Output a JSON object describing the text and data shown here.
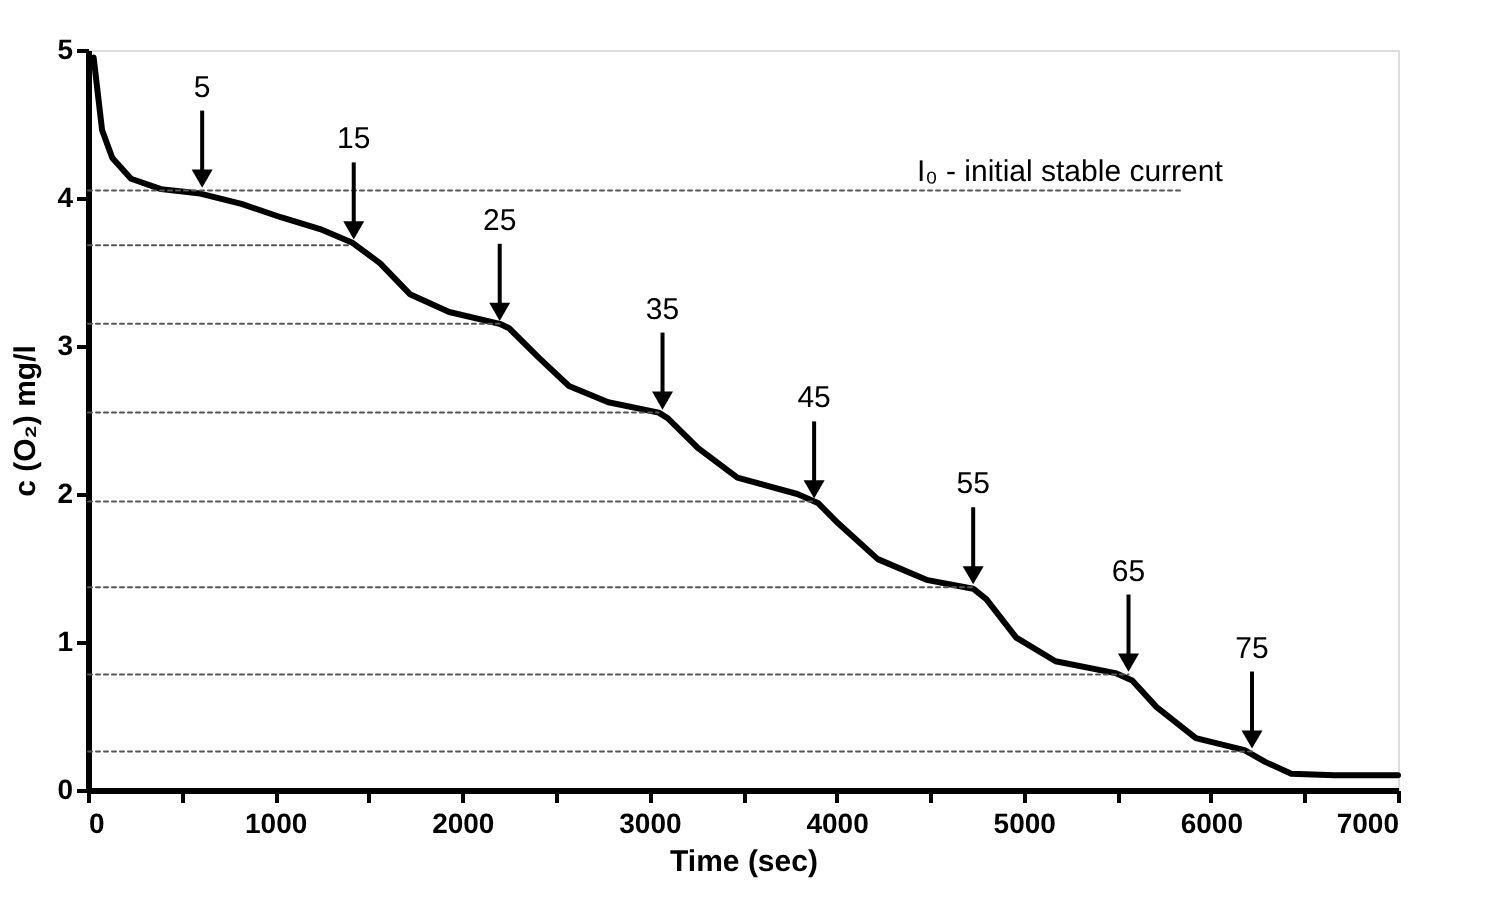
{
  "chart_data": {
    "type": "line",
    "xlabel": "Time (sec)",
    "ylabel": "c (O₂) mg/l",
    "xlim": [
      0,
      7000
    ],
    "ylim": [
      0,
      5
    ],
    "xticks": [
      0,
      {
        "value": 500,
        "label": null
      },
      1000,
      {
        "value": 1500,
        "label": null
      },
      2000,
      {
        "value": 2500,
        "label": null
      },
      3000,
      {
        "value": 3500,
        "label": null
      },
      4000,
      {
        "value": 4500,
        "label": null
      },
      5000,
      {
        "value": 5500,
        "label": null
      },
      6000,
      {
        "value": 6500,
        "label": null
      },
      7000
    ],
    "yticks": [
      0,
      1,
      2,
      3,
      4,
      5
    ],
    "grid": false,
    "legend": false,
    "marker": "none",
    "series": [
      {
        "type": "line",
        "color": "#000000",
        "line_style": "solid",
        "x": [
          30,
          75,
          130,
          230,
          390,
          600,
          820,
          1030,
          1240,
          1410,
          1560,
          1720,
          1930,
          2200,
          2250,
          2410,
          2570,
          2780,
          3050,
          3100,
          3260,
          3470,
          3790,
          3900,
          4010,
          4220,
          4480,
          4730,
          4800,
          4960,
          5170,
          5490,
          5580,
          5710,
          5920,
          6180,
          6290,
          6430,
          6660,
          7000
        ],
        "values": [
          4.95,
          4.46,
          4.27,
          4.13,
          4.06,
          4.03,
          3.96,
          3.87,
          3.79,
          3.7,
          3.56,
          3.35,
          3.23,
          3.15,
          3.12,
          2.92,
          2.73,
          2.62,
          2.55,
          2.51,
          2.31,
          2.11,
          2.0,
          1.94,
          1.8,
          1.56,
          1.42,
          1.36,
          1.29,
          1.03,
          0.87,
          0.79,
          0.74,
          0.56,
          0.35,
          0.27,
          0.19,
          0.11,
          0.1,
          0.1
        ]
      },
      {
        "type": "line",
        "name": "I₀ - initial stable current",
        "color": "#555555",
        "line_style": "dotted",
        "x": [
          0,
          5850
        ],
        "values": [
          4.05,
          4.05
        ]
      },
      {
        "type": "line",
        "color": "#555555",
        "line_style": "dotted",
        "x": [
          0,
          1410
        ],
        "values": [
          3.68,
          3.68
        ]
      },
      {
        "type": "line",
        "color": "#555555",
        "line_style": "dotted",
        "x": [
          0,
          2200
        ],
        "values": [
          3.15,
          3.15
        ]
      },
      {
        "type": "line",
        "color": "#555555",
        "line_style": "dotted",
        "x": [
          0,
          3050
        ],
        "values": [
          2.55,
          2.55
        ]
      },
      {
        "type": "line",
        "color": "#555555",
        "line_style": "dotted",
        "x": [
          0,
          3880
        ],
        "values": [
          1.95,
          1.95
        ]
      },
      {
        "type": "line",
        "color": "#555555",
        "line_style": "dotted",
        "x": [
          0,
          4730
        ],
        "values": [
          1.37,
          1.37
        ]
      },
      {
        "type": "line",
        "color": "#555555",
        "line_style": "dotted",
        "x": [
          0,
          5560
        ],
        "values": [
          0.78,
          0.78
        ]
      },
      {
        "type": "line",
        "color": "#555555",
        "line_style": "dotted",
        "x": [
          0,
          6220
        ],
        "values": [
          0.26,
          0.26
        ]
      }
    ],
    "annotations": [
      {
        "text": "5",
        "x": 610,
        "y": 4.05
      },
      {
        "text": "15",
        "x": 1420,
        "y": 3.7
      },
      {
        "text": "25",
        "x": 2200,
        "y": 3.15
      },
      {
        "text": "35",
        "x": 3070,
        "y": 2.55
      },
      {
        "text": "45",
        "x": 3880,
        "y": 1.95
      },
      {
        "text": "55",
        "x": 4730,
        "y": 1.37
      },
      {
        "text": "65",
        "x": 5560,
        "y": 0.78
      },
      {
        "text": "75",
        "x": 6220,
        "y": 0.26
      }
    ]
  }
}
